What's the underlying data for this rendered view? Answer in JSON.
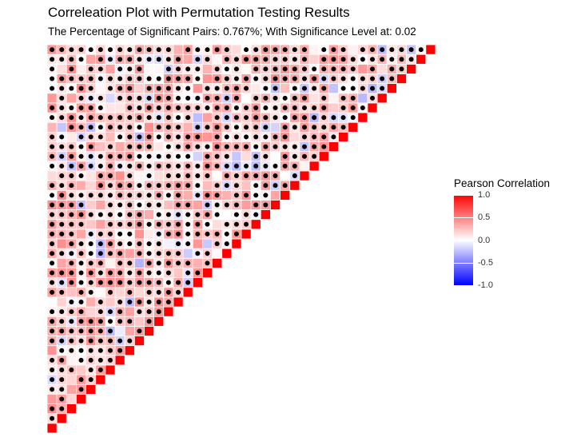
{
  "chart_data": {
    "type": "heatmap",
    "title": "Correleation Plot with Permutation Testing Results",
    "subtitle": "The Percentage of Significant Pairs: 0.767%; With Significance Level at: 0.02",
    "n_variables": 40,
    "legend": {
      "title": "Pearson Correlation",
      "ticks": [
        "1.0",
        "0.5",
        "0.0",
        "-0.5",
        "-1.0"
      ],
      "tick_values": [
        1.0,
        0.5,
        0.0,
        -0.5,
        -1.0
      ],
      "colors": {
        "high": "#ff0000",
        "mid": "#ffffff",
        "low": "#0000ff"
      },
      "placement": "right"
    },
    "diagonal_value": 1.0,
    "lower_triangle": "pearson correlation tiles (mostly 0.0 to 0.5)",
    "upper_triangle": "black dot = non-significant pair",
    "dot_color": "#000000"
  }
}
